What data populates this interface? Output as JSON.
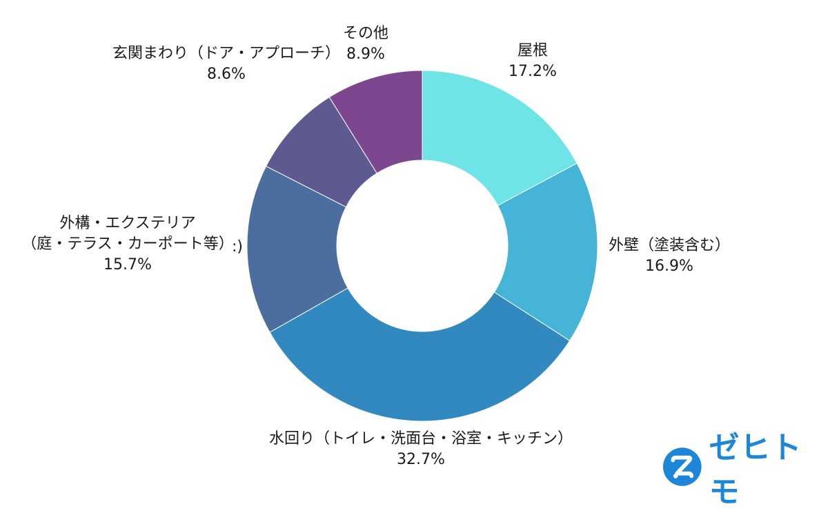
{
  "chart_data": {
    "type": "pie",
    "style": "donut",
    "start_angle": "12 o'clock",
    "direction": "clockwise",
    "slices": [
      {
        "label": "屋根",
        "value": 17.2,
        "value_label": "17.2%",
        "color": "#6ee3e8"
      },
      {
        "label": "外壁（塗装含む）",
        "value": 16.9,
        "value_label": "16.9%",
        "color": "#46b4d7"
      },
      {
        "label": "水回り（トイレ・洗面台・浴室・キッチン）",
        "value": 32.7,
        "value_label": "32.7%",
        "color": "#3189bf"
      },
      {
        "label": "外構・エクステリア\n（庭・テラス・カーポート等）",
        "value": 15.7,
        "value_label": "15.7%",
        "color": "#4c6e9e"
      },
      {
        "label": "玄関まわり（ドア・アプローチ）",
        "value": 8.6,
        "value_label": "8.6%",
        "color": "#5c5a8f"
      },
      {
        "label": "その他",
        "value": 8.9,
        "value_label": "8.9%",
        "color": "#7d4790"
      }
    ]
  },
  "brand": {
    "name": "ゼヒトモ",
    "logo_icon": "zehitomo-logo-icon",
    "color": "#1d86d8"
  }
}
